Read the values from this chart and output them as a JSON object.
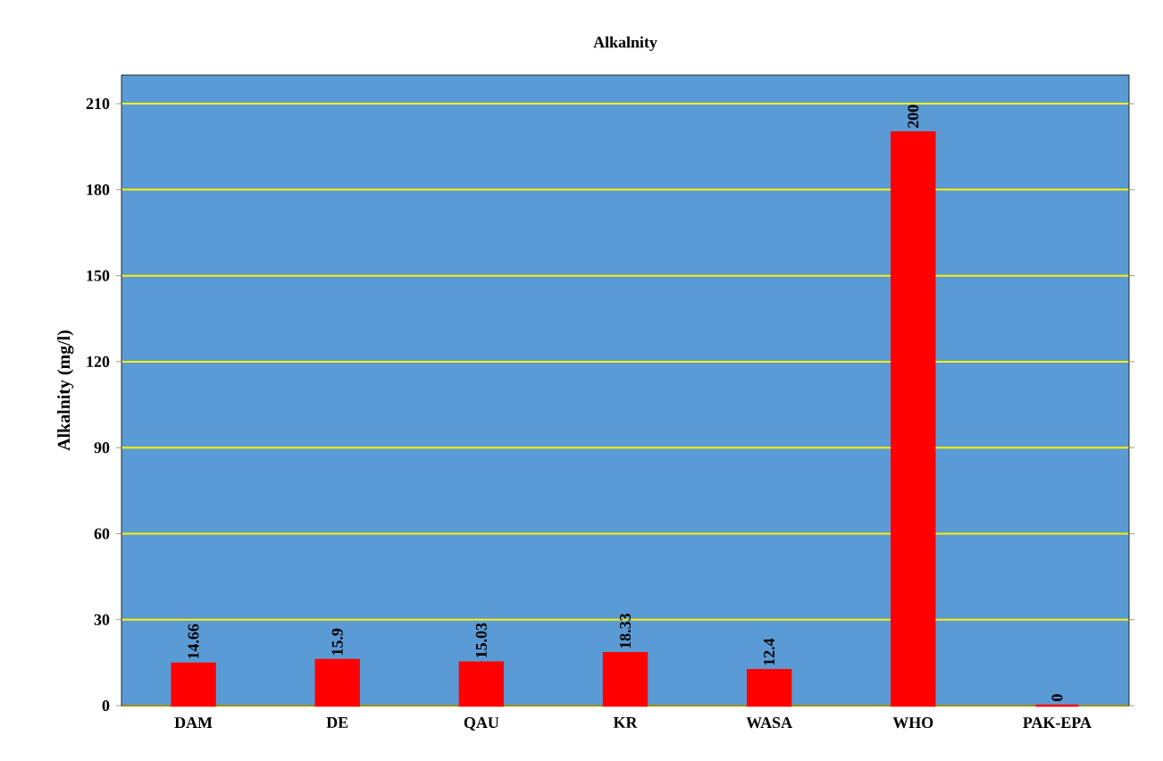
{
  "chart_data": {
    "type": "bar",
    "title": "Alkalnity",
    "ylabel": "Alkalnity (mg/l)",
    "categories": [
      "DAM",
      "DE",
      "QAU",
      "KR",
      "WASA",
      "WHO",
      "PAK-EPA"
    ],
    "values": [
      14.66,
      15.9,
      15.03,
      18.33,
      12.4,
      200,
      0
    ],
    "value_labels": [
      "14.66",
      "15.9",
      "15.03",
      "18.33",
      "12.4",
      "200",
      "0"
    ],
    "color": "#ff0000",
    "ylim": [
      0,
      220
    ],
    "yticks": [
      0,
      30,
      60,
      90,
      120,
      150,
      180,
      210
    ],
    "grid": "y"
  }
}
